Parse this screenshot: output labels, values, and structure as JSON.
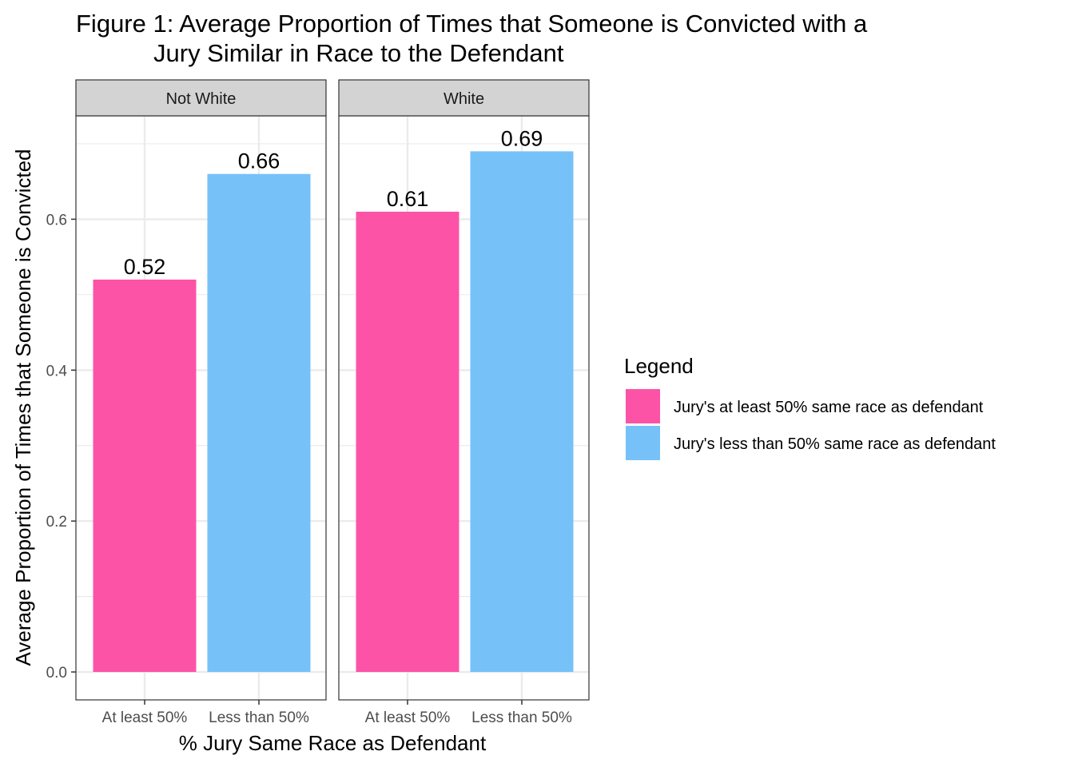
{
  "chart_data": {
    "type": "bar",
    "title_lines": [
      "Figure 1: Average Proportion of Times that Someone is Convicted with a",
      "Jury Similar in Race to the Defendant"
    ],
    "xlabel": "% Jury Same Race as Defendant",
    "ylabel": "Average Proportion of Times that Someone is Convicted",
    "ylim": [
      -0.037,
      0.737
    ],
    "yticks": [
      0.0,
      0.2,
      0.4,
      0.6
    ],
    "ytick_labels": [
      "0.0",
      "0.2",
      "0.4",
      "0.6"
    ],
    "categories": [
      "At least 50%",
      "Less than 50%"
    ],
    "grid": true,
    "facets": [
      {
        "label": "Not White",
        "bars": [
          {
            "category": "At least 50%",
            "value": 0.52,
            "label": "0.52",
            "series": 0
          },
          {
            "category": "Less than 50%",
            "value": 0.66,
            "label": "0.66",
            "series": 1
          }
        ]
      },
      {
        "label": "White",
        "bars": [
          {
            "category": "At least 50%",
            "value": 0.61,
            "label": "0.61",
            "series": 0
          },
          {
            "category": "Less than 50%",
            "value": 0.69,
            "label": "0.69",
            "series": 1
          }
        ]
      }
    ],
    "legend": {
      "title": "Legend",
      "position": "right",
      "entries": [
        {
          "label": "Jury's at least 50% same race as defendant",
          "color": "#FC53A7"
        },
        {
          "label": "Jury's less than 50% same race as defendant",
          "color": "#77C1F9"
        }
      ]
    },
    "colors": {
      "strip_fill": "#D3D3D3",
      "grid": "#EBEBEB",
      "panel_border": "#333333"
    }
  }
}
